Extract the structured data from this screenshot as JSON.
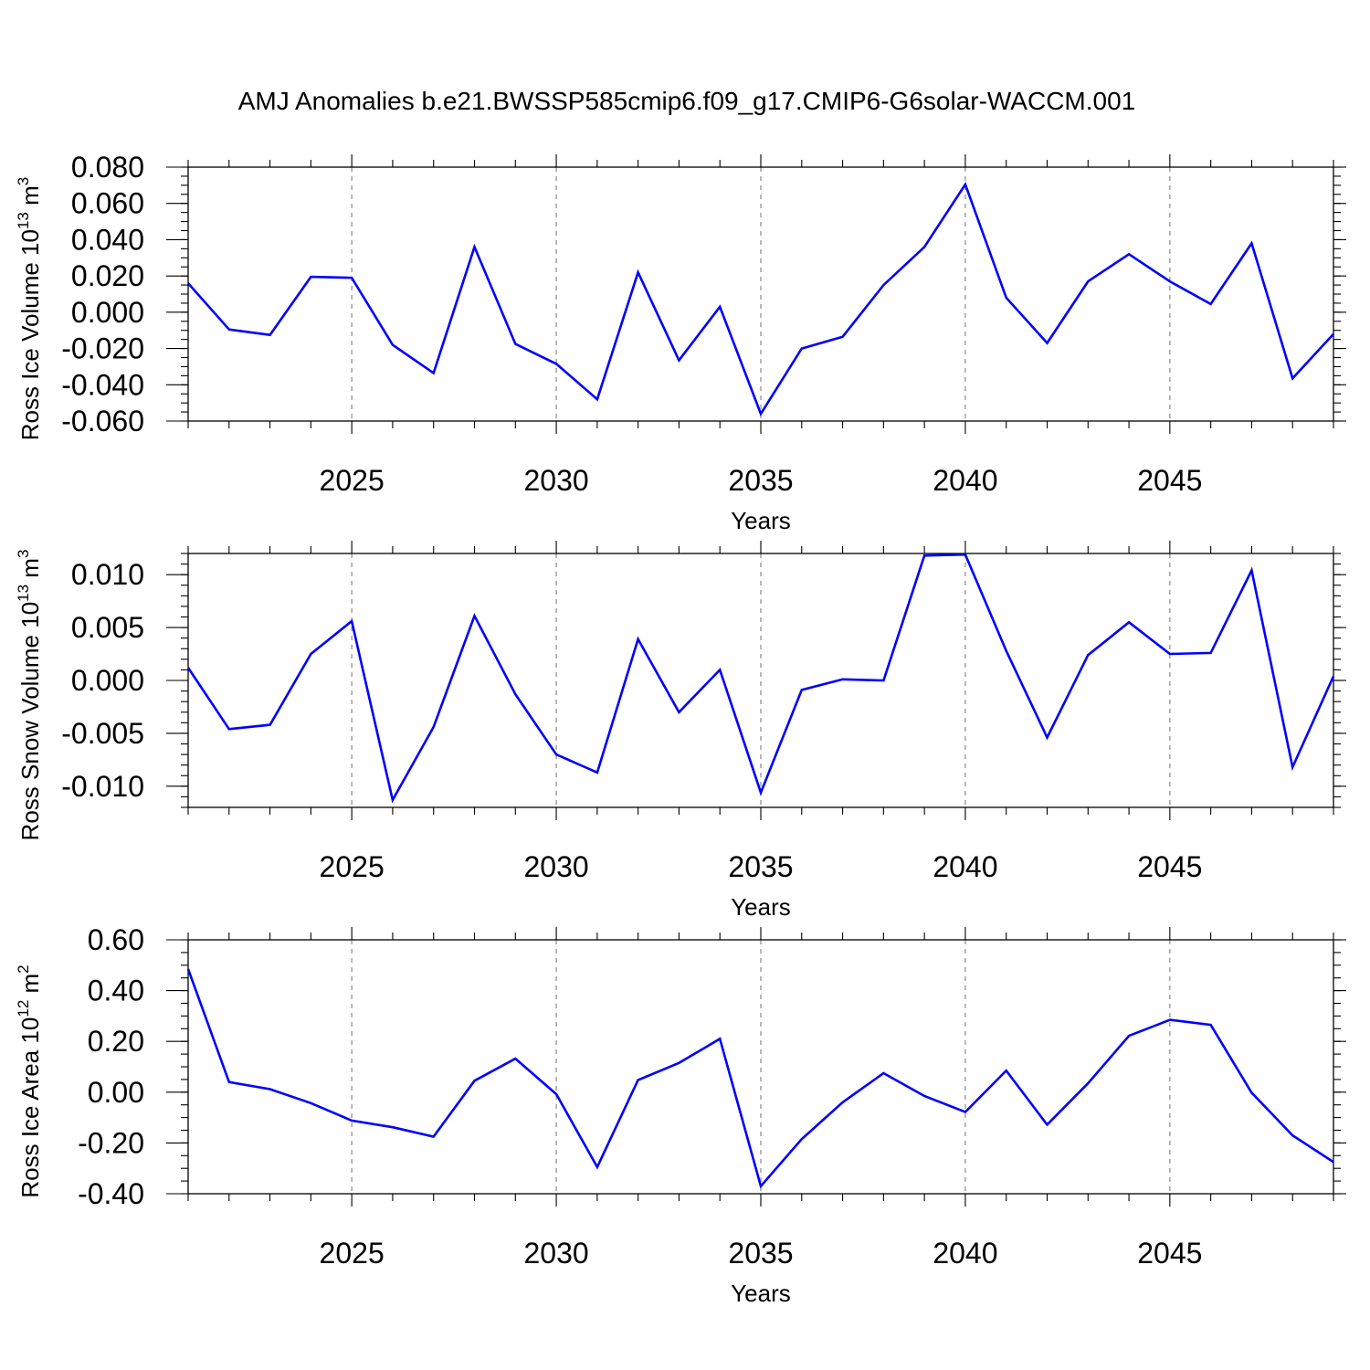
{
  "title": "AMJ Anomalies b.e21.BWSSP585cmip6.f09_g17.CMIP6-G6solar-WACCM.001",
  "colors": {
    "line": "#0000ff",
    "grid": "#8a8a8a",
    "axis": "#000000"
  },
  "chart_data": [
    {
      "type": "line",
      "ylabel": {
        "text": "Ross Ice Volume 10",
        "sup": "13",
        "unit": " m",
        "unit_sup": "3"
      },
      "xlabel": "Years",
      "xlim": [
        2021,
        2049
      ],
      "ylim": [
        -0.06,
        0.08
      ],
      "xticks": [
        2025,
        2030,
        2035,
        2040,
        2045
      ],
      "xtick_labels": [
        "2025",
        "2030",
        "2035",
        "2040",
        "2045"
      ],
      "yticks": [
        -0.06,
        -0.04,
        -0.02,
        0.0,
        0.02,
        0.04,
        0.06,
        0.08
      ],
      "ytick_labels": [
        "-0.060",
        "-0.040",
        "-0.020",
        "0.000",
        "0.020",
        "0.040",
        "0.060",
        "0.080"
      ],
      "yminor_step": 0.005,
      "grid_x": true,
      "x": [
        2021,
        2022,
        2023,
        2024,
        2025,
        2026,
        2027,
        2028,
        2029,
        2030,
        2031,
        2032,
        2033,
        2034,
        2035,
        2036,
        2037,
        2038,
        2039,
        2040,
        2041,
        2042,
        2043,
        2044,
        2045,
        2046,
        2047,
        2048,
        2049
      ],
      "series": [
        {
          "values": [
            0.016,
            -0.0095,
            -0.0125,
            0.0195,
            0.019,
            -0.018,
            -0.0335,
            0.036,
            -0.0175,
            -0.0285,
            -0.048,
            0.022,
            -0.0265,
            0.003,
            -0.056,
            -0.02,
            -0.0135,
            0.015,
            0.036,
            0.0705,
            0.008,
            -0.017,
            0.017,
            0.032,
            0.017,
            0.0045,
            0.038,
            -0.0365,
            -0.012
          ]
        }
      ]
    },
    {
      "type": "line",
      "ylabel": {
        "text": "Ross Snow Volume 10",
        "sup": "13",
        "unit": " m",
        "unit_sup": "3"
      },
      "xlabel": "Years",
      "xlim": [
        2021,
        2049
      ],
      "ylim": [
        -0.012,
        0.012
      ],
      "xticks": [
        2025,
        2030,
        2035,
        2040,
        2045
      ],
      "xtick_labels": [
        "2025",
        "2030",
        "2035",
        "2040",
        "2045"
      ],
      "yticks": [
        -0.01,
        -0.005,
        0.0,
        0.005,
        0.01
      ],
      "ytick_labels": [
        "-0.010",
        "-0.005",
        "0.000",
        "0.005",
        "0.010"
      ],
      "yminor_step": 0.001,
      "grid_x": true,
      "x": [
        2021,
        2022,
        2023,
        2024,
        2025,
        2026,
        2027,
        2028,
        2029,
        2030,
        2031,
        2032,
        2033,
        2034,
        2035,
        2036,
        2037,
        2038,
        2039,
        2040,
        2041,
        2042,
        2043,
        2044,
        2045,
        2046,
        2047,
        2048,
        2049
      ],
      "series": [
        {
          "values": [
            0.0012,
            -0.0046,
            -0.0042,
            0.0025,
            0.0056,
            -0.0113,
            -0.0044,
            0.0061,
            -0.0013,
            -0.007,
            -0.0087,
            0.0039,
            -0.003,
            0.001,
            -0.0106,
            -0.0009,
            0.0001,
            0.0,
            0.0118,
            0.0119,
            0.0028,
            -0.0054,
            0.0024,
            0.0055,
            0.0025,
            0.0026,
            0.0104,
            -0.0082,
            0.0004
          ]
        }
      ]
    },
    {
      "type": "line",
      "ylabel": {
        "text": "Ross Ice Area 10",
        "sup": "12",
        "unit": " m",
        "unit_sup": "2"
      },
      "xlabel": "Years",
      "xlim": [
        2021,
        2049
      ],
      "ylim": [
        -0.4,
        0.6
      ],
      "xticks": [
        2025,
        2030,
        2035,
        2040,
        2045
      ],
      "xtick_labels": [
        "2025",
        "2030",
        "2035",
        "2040",
        "2045"
      ],
      "yticks": [
        -0.4,
        -0.2,
        0.0,
        0.2,
        0.4,
        0.6
      ],
      "ytick_labels": [
        "-0.40",
        "-0.20",
        "0.00",
        "0.20",
        "0.40",
        "0.60"
      ],
      "yminor_step": 0.05,
      "grid_x": true,
      "x": [
        2021,
        2022,
        2023,
        2024,
        2025,
        2026,
        2027,
        2028,
        2029,
        2030,
        2031,
        2032,
        2033,
        2034,
        2035,
        2036,
        2037,
        2038,
        2039,
        2040,
        2041,
        2042,
        2043,
        2044,
        2045,
        2046,
        2047,
        2048,
        2049
      ],
      "series": [
        {
          "values": [
            0.485,
            0.04,
            0.012,
            -0.043,
            -0.112,
            -0.138,
            -0.175,
            0.045,
            0.132,
            -0.008,
            -0.295,
            0.048,
            0.115,
            0.21,
            -0.37,
            -0.185,
            -0.04,
            0.075,
            -0.015,
            -0.078,
            0.085,
            -0.128,
            0.035,
            0.222,
            0.285,
            0.265,
            -0.002,
            -0.17,
            -0.275
          ]
        }
      ]
    }
  ]
}
